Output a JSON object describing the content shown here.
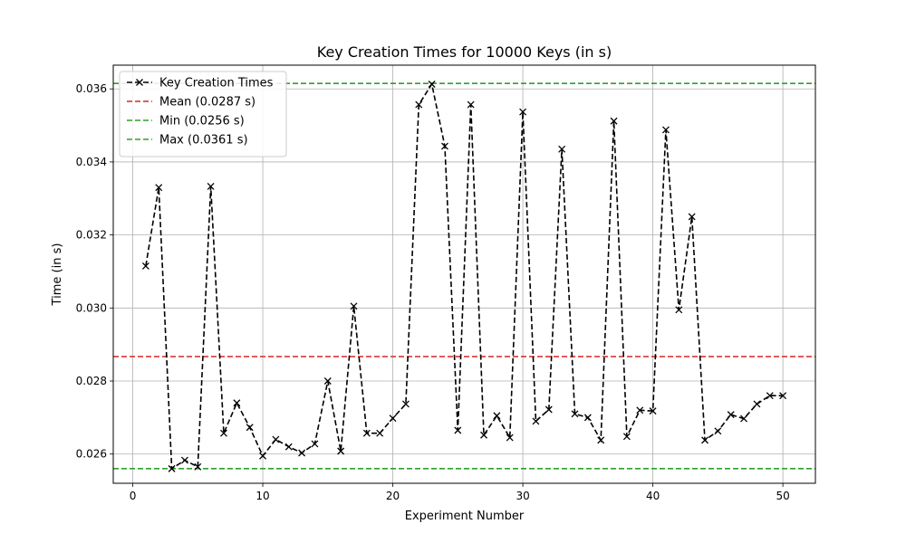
{
  "chart_data": {
    "type": "line",
    "title": "Key Creation Times for 10000 Keys (in s)",
    "xlabel": "Experiment Number",
    "ylabel": "Time (in s)",
    "xlim": [
      -1.5,
      52.5
    ],
    "ylim": [
      0.0252,
      0.03665
    ],
    "xticks": [
      0,
      10,
      20,
      30,
      40,
      50
    ],
    "xtick_labels": [
      "0",
      "10",
      "20",
      "30",
      "40",
      "50"
    ],
    "yticks": [
      0.026,
      0.028,
      0.03,
      0.032,
      0.034,
      0.036
    ],
    "ytick_labels": [
      "0.026",
      "0.028",
      "0.030",
      "0.032",
      "0.034",
      "0.036"
    ],
    "grid": true,
    "legend": {
      "position": "top-left",
      "entries": [
        {
          "label": "Key Creation Times",
          "color": "#000000",
          "style": "dashed",
          "marker": "x"
        },
        {
          "label": "Mean (0.0287 s)",
          "color": "#d62728",
          "style": "dashed"
        },
        {
          "label": "Min (0.0256 s)",
          "color": "#2ca02c",
          "style": "dashed"
        },
        {
          "label": "Max (0.0361 s)",
          "color": "#2ca02c",
          "style": "dashed"
        }
      ]
    },
    "series": [
      {
        "name": "Key Creation Times",
        "color": "#000000",
        "x": [
          1,
          2,
          3,
          4,
          5,
          6,
          7,
          8,
          9,
          10,
          11,
          12,
          13,
          14,
          15,
          16,
          17,
          18,
          19,
          20,
          21,
          22,
          23,
          24,
          25,
          26,
          27,
          28,
          29,
          30,
          31,
          32,
          33,
          34,
          35,
          36,
          37,
          38,
          39,
          40,
          41,
          42,
          43,
          44,
          45,
          46,
          47,
          48,
          49,
          50
        ],
        "y": [
          0.03115,
          0.0333,
          0.0256,
          0.02583,
          0.02565,
          0.03333,
          0.02657,
          0.0274,
          0.02673,
          0.02595,
          0.0264,
          0.0262,
          0.02603,
          0.02628,
          0.028,
          0.02608,
          0.03005,
          0.02657,
          0.02657,
          0.02698,
          0.02737,
          0.03557,
          0.03613,
          0.03443,
          0.02665,
          0.03557,
          0.02652,
          0.02705,
          0.02645,
          0.03537,
          0.0269,
          0.02722,
          0.03435,
          0.0271,
          0.027,
          0.02638,
          0.03512,
          0.02648,
          0.0272,
          0.02718,
          0.03488,
          0.02995,
          0.0325,
          0.02638,
          0.02663,
          0.02708,
          0.02697,
          0.02737,
          0.0276,
          0.0276
        ]
      }
    ],
    "reference_lines": [
      {
        "name": "Mean (0.0287 s)",
        "y": 0.02867,
        "color": "#d62728"
      },
      {
        "name": "Min (0.0256 s)",
        "y": 0.0256,
        "color": "#2ca02c"
      },
      {
        "name": "Max (0.0361 s)",
        "y": 0.03615,
        "color": "#2ca02c"
      }
    ]
  }
}
